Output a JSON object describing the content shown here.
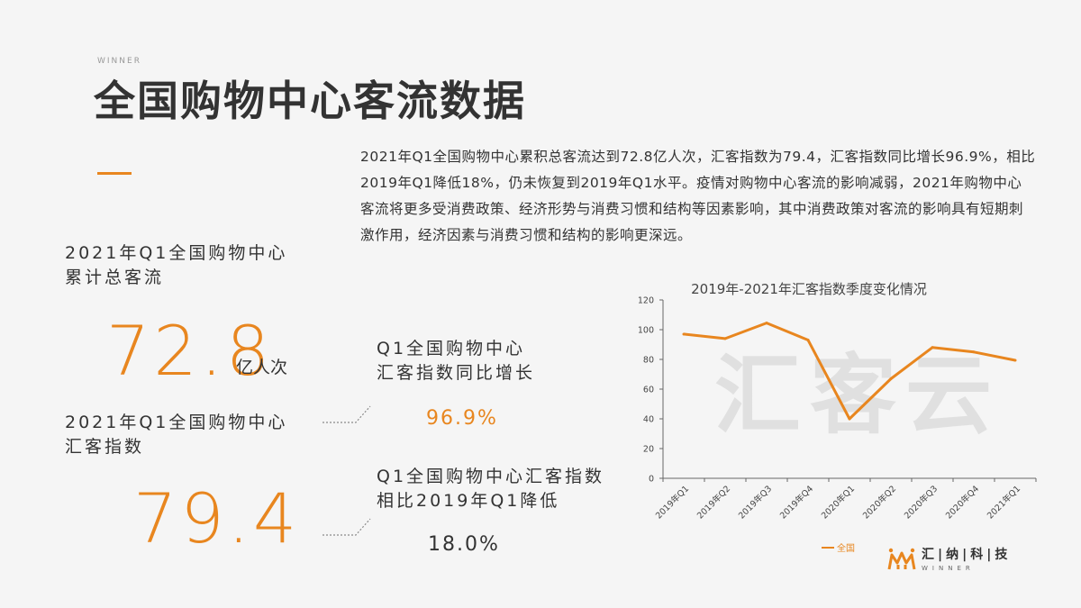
{
  "header": {
    "brand_small": "WINNER",
    "title": "全国购物中心客流数据"
  },
  "paragraph": "2021年Q1全国购物中心累积总客流达到72.8亿人次，汇客指数为79.4，汇客指数同比增长96.9%，相比2019年Q1降低18%，仍未恢复到2019年Q1水平。疫情对购物中心客流的影响减弱，2021年购物中心客流将更多受消费政策、经济形势与消费习惯和结构等因素影响，其中消费政策对客流的影响具有短期刺激作用，经济因素与消费习惯和结构的影响更深远。",
  "stats": {
    "total_flow": {
      "label_line1": "2021年Q1全国购物中心",
      "label_line2": "累计总客流",
      "value": "72.8",
      "unit": "亿人次"
    },
    "index": {
      "label_line1": "2021年Q1全国购物中心",
      "label_line2": "汇客指数",
      "value": "79.4"
    },
    "yoy_growth": {
      "label_line1": "Q1全国购物中心",
      "label_line2": "汇客指数同比增长",
      "value": "96.9%",
      "color": "#e8861f"
    },
    "vs_2019": {
      "label_line1": "Q1全国购物中心汇客指数",
      "label_line2": "相比2019年Q1降低",
      "value": "18.0%",
      "color": "#333333"
    }
  },
  "chart_data": {
    "type": "line",
    "title": "2019年-2021年汇客指数季度变化情况",
    "categories": [
      "2019年Q1",
      "2019年Q2",
      "2019年Q3",
      "2019年Q4",
      "2020年Q1",
      "2020年Q2",
      "2020年Q3",
      "2020年Q4",
      "2021年Q1"
    ],
    "series": [
      {
        "name": "全国",
        "values": [
          97,
          94,
          104.5,
          93,
          40,
          67,
          88,
          85,
          79.4
        ],
        "color": "#e8861f"
      }
    ],
    "ylim": [
      0,
      120
    ],
    "yticks": [
      0,
      20,
      40,
      60,
      80,
      100,
      120
    ],
    "grid": false,
    "legend": "bottom-left",
    "watermark": "汇客云"
  },
  "logo": {
    "name_cn": "汇|纳|科|技",
    "name_en": "WINNER",
    "accent": "#e8861f"
  }
}
